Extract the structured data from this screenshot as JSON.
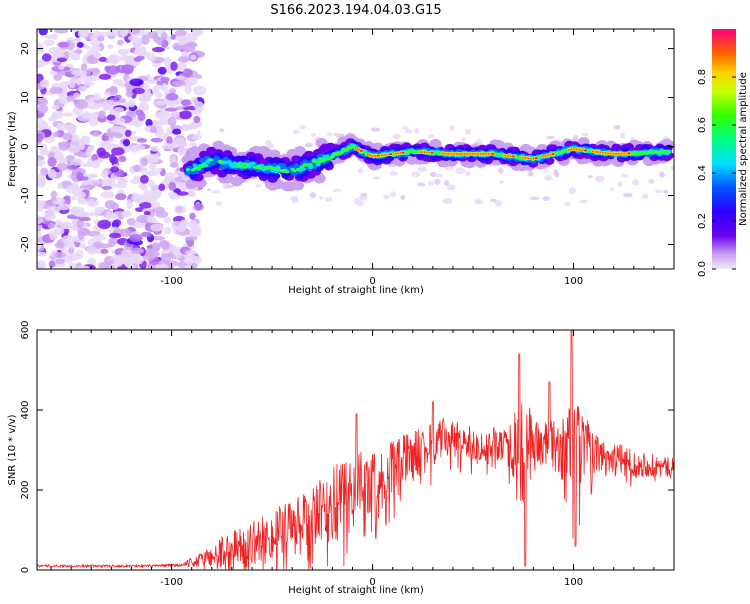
{
  "title": "S166.2023.194.04.03.G15",
  "chart_data": [
    {
      "type": "heatmap",
      "xlabel": "Height of straight line (km)",
      "ylabel": "Frequency (Hz)",
      "xlim": [
        -167,
        150
      ],
      "ylim": [
        -25,
        24
      ],
      "x_ticks": [
        "-100",
        "0",
        "100"
      ],
      "x_tick_values": [
        -100,
        0,
        100
      ],
      "y_ticks": [
        "-20",
        "-10",
        "0",
        "10",
        "20"
      ],
      "y_tick_values": [
        -20,
        -10,
        0,
        10,
        20
      ],
      "colorbar": {
        "label": "Normalized spectral amplitude",
        "range": [
          0,
          1
        ],
        "ticks": [
          "0.0",
          "0.2",
          "0.4",
          "0.6",
          "0.8"
        ],
        "tick_values": [
          0,
          0.2,
          0.4,
          0.6,
          0.8
        ]
      },
      "ridge": {
        "description_points_x": [
          -92,
          -80,
          -60,
          -40,
          -20,
          -10,
          0,
          20,
          40,
          60,
          80,
          100,
          120,
          148
        ],
        "description_points_y": [
          -5,
          -3,
          -4,
          -5,
          -2,
          0,
          -2,
          -1,
          -1.5,
          -1.5,
          -2.5,
          -0.5,
          -1.5,
          -1
        ],
        "scattered_noise_xrange": [
          -167,
          -90
        ]
      }
    },
    {
      "type": "line",
      "xlabel": "Height of straight line (km)",
      "ylabel": "SNR (10 * v/v)",
      "xlim": [
        -167,
        150
      ],
      "ylim": [
        0,
        600
      ],
      "x_ticks": [
        "-100",
        "0",
        "100"
      ],
      "x_tick_values": [
        -100,
        0,
        100
      ],
      "y_ticks": [
        "0",
        "200",
        "400",
        "600"
      ],
      "y_tick_values": [
        0,
        200,
        400,
        600
      ],
      "series": [
        {
          "color": "#ee2222",
          "x": [
            -167,
            -150,
            -130,
            -110,
            -95,
            -85,
            -75,
            -65,
            -55,
            -45,
            -35,
            -25,
            -15,
            -5,
            5,
            15,
            25,
            35,
            45,
            55,
            65,
            75,
            80,
            85,
            95,
            100,
            110,
            120,
            130,
            140,
            150
          ],
          "y": [
            10,
            10,
            10,
            10,
            12,
            25,
            45,
            60,
            75,
            95,
            110,
            140,
            180,
            210,
            230,
            270,
            300,
            330,
            320,
            310,
            320,
            300,
            320,
            310,
            300,
            320,
            290,
            280,
            270,
            260,
            255
          ],
          "noise_amp": [
            3,
            3,
            3,
            3,
            4,
            20,
            40,
            50,
            60,
            70,
            80,
            90,
            100,
            90,
            80,
            70,
            60,
            50,
            45,
            40,
            45,
            120,
            80,
            60,
            80,
            140,
            50,
            40,
            35,
            30,
            25
          ],
          "spikes": [
            [
              -8,
              390
            ],
            [
              30,
              420
            ],
            [
              73,
              540
            ],
            [
              76,
              10
            ],
            [
              88,
              470
            ],
            [
              99,
              600
            ],
            [
              101,
              60
            ]
          ]
        }
      ]
    }
  ]
}
